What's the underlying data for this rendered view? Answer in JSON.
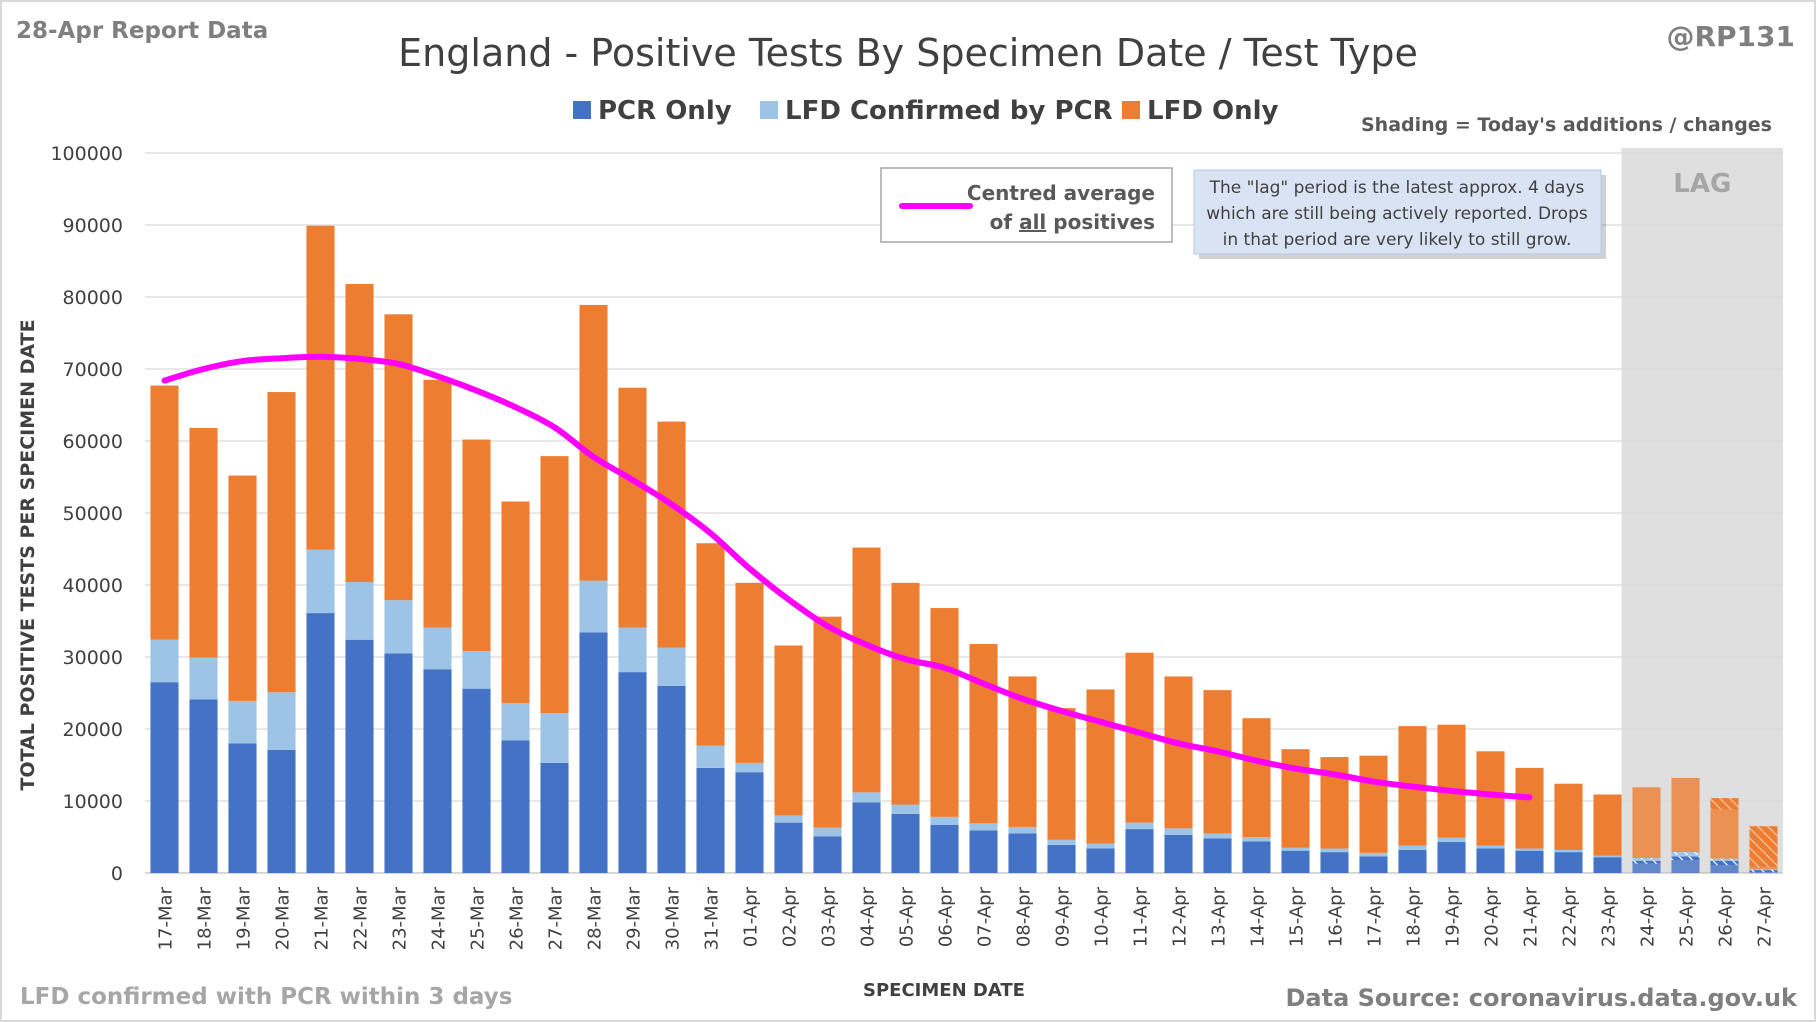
{
  "header": {
    "report_label": "28-Apr Report Data",
    "author_handle": "@RP131",
    "shading_note": "Shading = Today's additions / changes",
    "footnote_left": "LFD confirmed with PCR within 3 days",
    "data_source": "Data Source: coronavirus.data.gov.uk"
  },
  "legend": {
    "pcr_only": "PCR Only",
    "lfd_confirmed": "LFD Confirmed by PCR",
    "lfd_only": "LFD Only"
  },
  "avg_legend": {
    "line1": "Centred average",
    "line2_prefix": "of ",
    "line2_underlined": "all",
    "line2_suffix": " positives"
  },
  "lag_note": {
    "line1": "The \"lag\" period is the latest approx. 4 days",
    "line2": "which are still being actively reported.  Drops",
    "line3": "in that period are very likely to still grow."
  },
  "colors": {
    "pcr_only": "#4472c4",
    "lfd_confirmed": "#9dc3e6",
    "lfd_only": "#ed7d31",
    "average_line": "#ff00ff",
    "lag_shade": "#d9d9d9",
    "gridline": "#d9d9d9",
    "text": "#404040"
  },
  "chart_data": {
    "type": "bar",
    "stacked": true,
    "title": "England - Positive Tests By Specimen Date / Test Type",
    "xlabel": "SPECIMEN DATE",
    "ylabel": "TOTAL POSITIVE TESTS PER SPECIMEN DATE",
    "ylim": [
      0,
      100000
    ],
    "yticks": [
      0,
      10000,
      20000,
      30000,
      40000,
      50000,
      60000,
      70000,
      80000,
      90000,
      100000
    ],
    "grid": true,
    "legend_position": "top",
    "lag_label": "LAG",
    "lag_categories": [
      "24-Apr",
      "25-Apr",
      "26-Apr",
      "27-Apr"
    ],
    "categories": [
      "17-Mar",
      "18-Mar",
      "19-Mar",
      "20-Mar",
      "21-Mar",
      "22-Mar",
      "23-Mar",
      "24-Mar",
      "25-Mar",
      "26-Mar",
      "27-Mar",
      "28-Mar",
      "29-Mar",
      "30-Mar",
      "31-Mar",
      "01-Apr",
      "02-Apr",
      "03-Apr",
      "04-Apr",
      "05-Apr",
      "06-Apr",
      "07-Apr",
      "08-Apr",
      "09-Apr",
      "10-Apr",
      "11-Apr",
      "12-Apr",
      "13-Apr",
      "14-Apr",
      "15-Apr",
      "16-Apr",
      "17-Apr",
      "18-Apr",
      "19-Apr",
      "20-Apr",
      "21-Apr",
      "22-Apr",
      "23-Apr",
      "24-Apr",
      "25-Apr",
      "26-Apr",
      "27-Apr"
    ],
    "series": [
      {
        "name": "PCR Only",
        "values": [
          26500,
          24100,
          18000,
          17100,
          36100,
          32400,
          30500,
          28300,
          25600,
          18400,
          15300,
          33400,
          27900,
          26000,
          14600,
          14000,
          7000,
          5100,
          9800,
          8200,
          6700,
          5900,
          5500,
          3900,
          3400,
          6100,
          5300,
          4800,
          4400,
          3100,
          2900,
          2300,
          3200,
          4300,
          3400,
          3100,
          2900,
          2200,
          1700,
          2300,
          1700,
          400
        ]
      },
      {
        "name": "LFD Confirmed by PCR",
        "values": [
          5900,
          5800,
          5900,
          8000,
          8800,
          8000,
          7400,
          5800,
          5200,
          5200,
          6900,
          7200,
          6200,
          5300,
          3100,
          1300,
          1000,
          1200,
          1400,
          1300,
          1100,
          1000,
          900,
          700,
          700,
          900,
          900,
          700,
          600,
          400,
          500,
          500,
          600,
          600,
          400,
          300,
          300,
          200,
          400,
          600,
          300,
          100
        ]
      },
      {
        "name": "LFD Only",
        "values": [
          35300,
          31900,
          31300,
          41700,
          45000,
          41400,
          39700,
          34400,
          29400,
          28000,
          35700,
          38300,
          33300,
          31400,
          28100,
          25000,
          23600,
          29300,
          34000,
          30800,
          29000,
          24900,
          20900,
          18300,
          21400,
          23600,
          21100,
          19900,
          16500,
          13700,
          12700,
          13500,
          16600,
          15700,
          13100,
          11200,
          9200,
          8500,
          9800,
          10300,
          8400,
          6000
        ]
      }
    ],
    "today_changes": {
      "pcr_only": [
        0,
        0,
        0,
        0,
        0,
        0,
        0,
        0,
        0,
        0,
        0,
        0,
        0,
        0,
        0,
        0,
        0,
        0,
        0,
        0,
        0,
        0,
        0,
        0,
        0,
        0,
        0,
        0,
        0,
        0,
        0,
        0,
        0,
        0,
        0,
        0,
        0,
        0,
        400,
        500,
        600,
        300
      ],
      "lfd_confirmed": [
        0,
        0,
        0,
        0,
        0,
        0,
        0,
        0,
        0,
        0,
        0,
        0,
        0,
        0,
        0,
        0,
        0,
        0,
        0,
        0,
        0,
        0,
        0,
        0,
        0,
        0,
        0,
        0,
        0,
        0,
        0,
        0,
        0,
        0,
        0,
        0,
        0,
        0,
        200,
        400,
        200,
        100
      ],
      "lfd_only": [
        0,
        0,
        0,
        0,
        0,
        0,
        0,
        0,
        0,
        0,
        0,
        0,
        0,
        0,
        0,
        0,
        0,
        0,
        0,
        0,
        0,
        0,
        0,
        0,
        0,
        0,
        0,
        0,
        0,
        0,
        0,
        0,
        0,
        0,
        0,
        0,
        0,
        0,
        0,
        0,
        1600,
        5700
      ]
    },
    "centred_average": {
      "name": "Centred average of all positives",
      "categories": [
        "17-Mar",
        "18-Mar",
        "19-Mar",
        "20-Mar",
        "21-Mar",
        "22-Mar",
        "23-Mar",
        "24-Mar",
        "25-Mar",
        "26-Mar",
        "27-Mar",
        "28-Mar",
        "29-Mar",
        "30-Mar",
        "31-Mar",
        "01-Apr",
        "02-Apr",
        "03-Apr",
        "04-Apr",
        "05-Apr",
        "06-Apr",
        "07-Apr",
        "08-Apr",
        "09-Apr",
        "10-Apr",
        "11-Apr",
        "12-Apr",
        "13-Apr",
        "14-Apr",
        "15-Apr",
        "16-Apr",
        "17-Apr",
        "18-Apr",
        "19-Apr",
        "20-Apr",
        "21-Apr"
      ],
      "values": [
        68400,
        70000,
        71100,
        71500,
        71700,
        71400,
        70700,
        69000,
        67000,
        64700,
        61900,
        57800,
        54600,
        51200,
        47200,
        42300,
        38000,
        34300,
        31700,
        29700,
        28500,
        26300,
        24200,
        22500,
        21000,
        19500,
        18000,
        16900,
        15600,
        14500,
        13700,
        12700,
        12000,
        11400,
        10900,
        10500
      ]
    }
  }
}
